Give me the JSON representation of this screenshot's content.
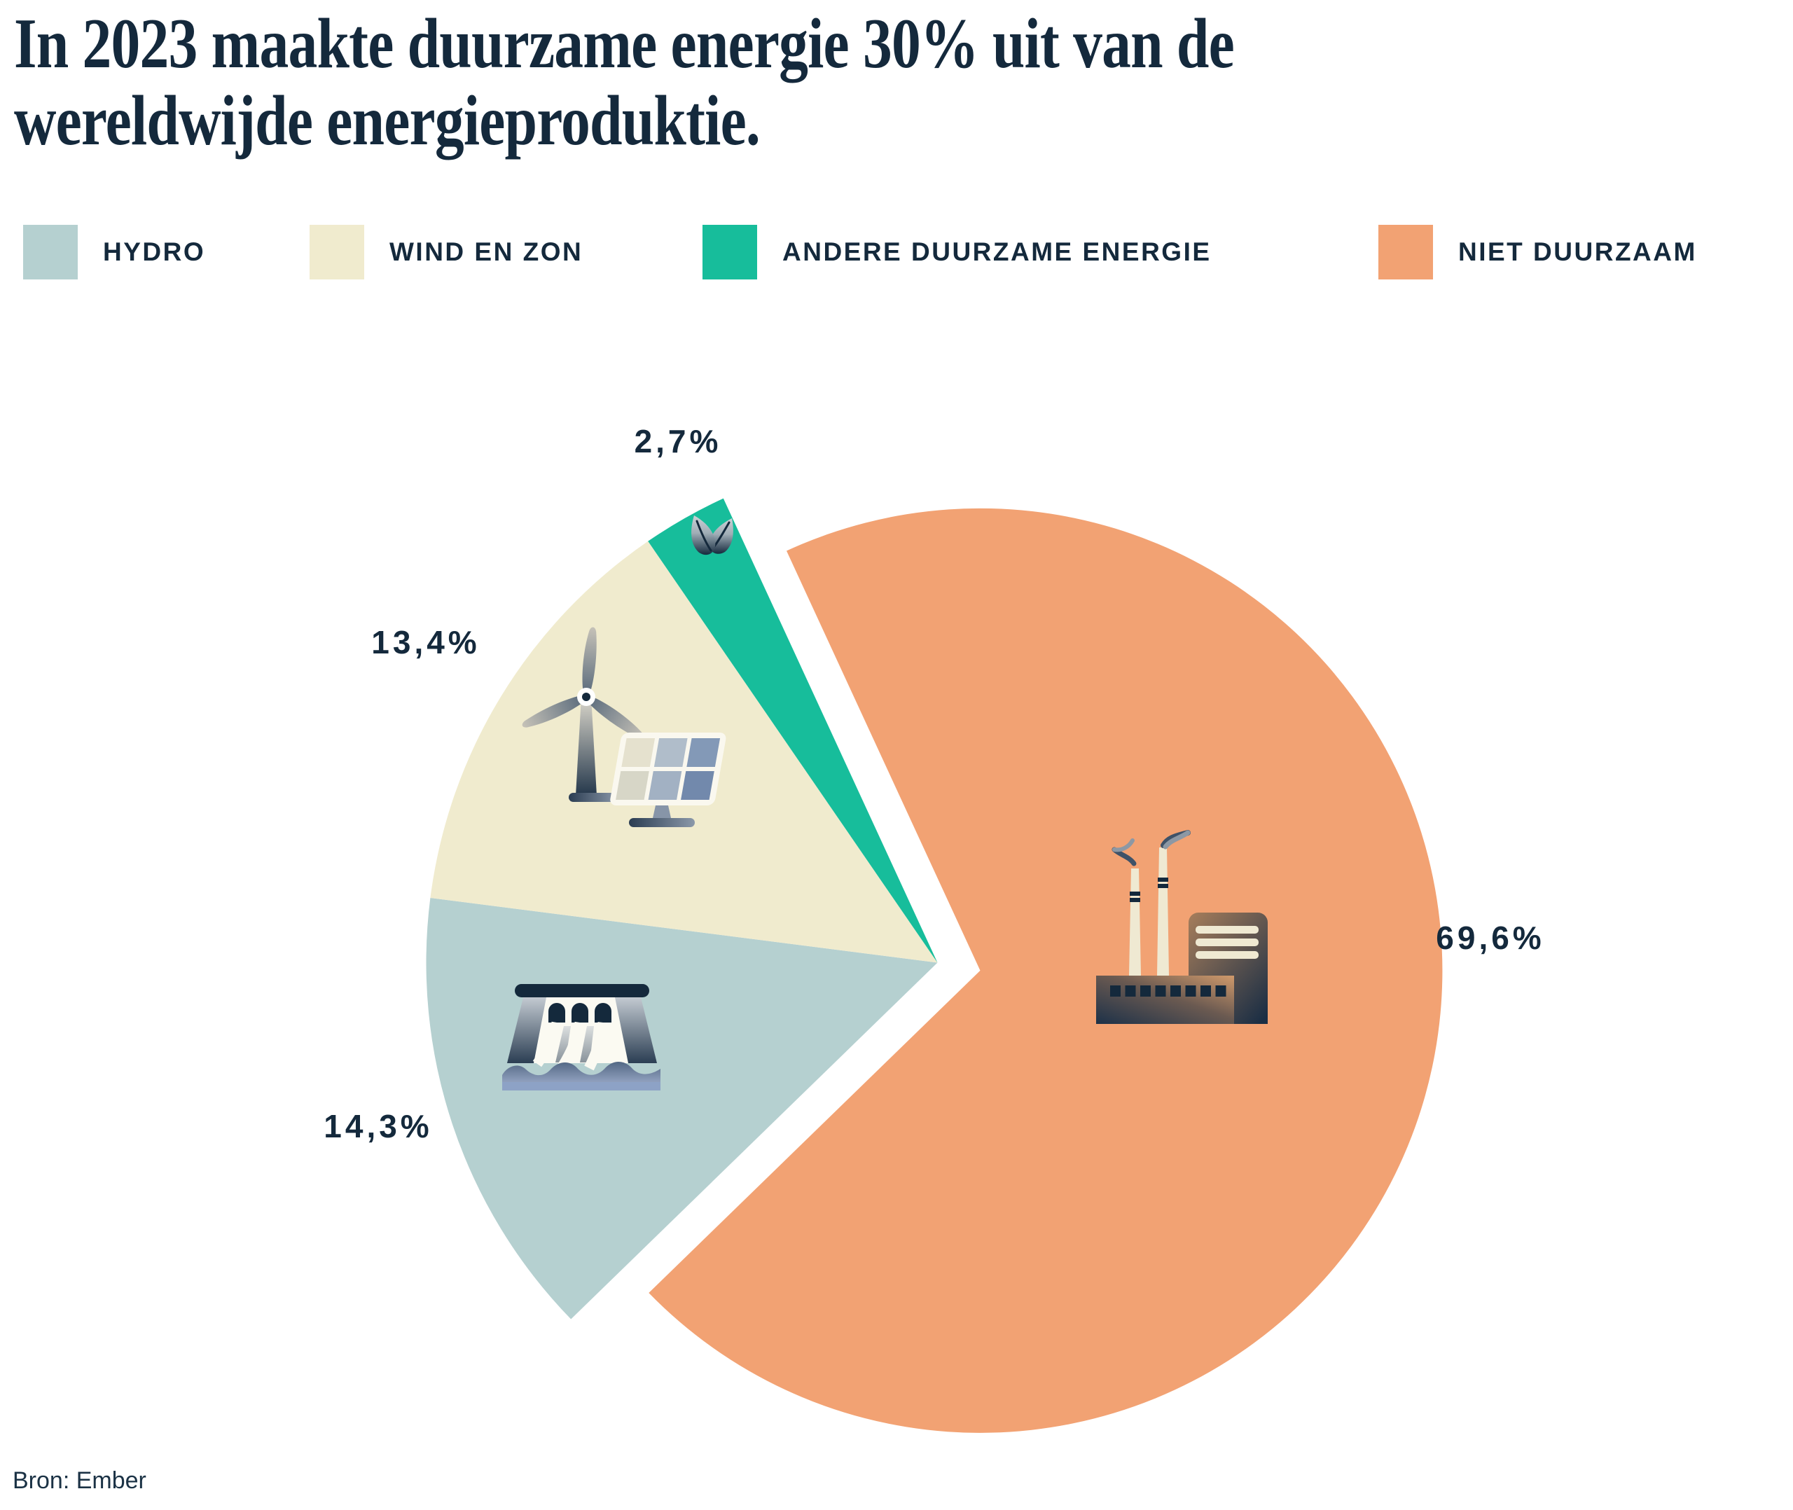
{
  "title": {
    "lines": [
      "In 2023 maakte duurzame energie 30% uit van de",
      "wereldwijde energieproduktie."
    ]
  },
  "legend": {
    "items": [
      {
        "key": "hydro",
        "label": "HYDRO",
        "color": "#b5d0d0"
      },
      {
        "key": "wind-en-zon",
        "label": "WIND EN ZON",
        "color": "#f0ebce"
      },
      {
        "key": "andere-duurzame-energie",
        "label": "ANDERE DUURZAME ENERGIE",
        "color": "#17bd9b"
      },
      {
        "key": "niet-duurzaam",
        "label": "NIET DUURZAAM",
        "color": "#f2a273"
      }
    ]
  },
  "chart_data": {
    "type": "pie",
    "title": "In 2023 maakte duurzame energie 30% uit van de wereldwijde energieproduktie.",
    "unit": "%",
    "start_angle_deg_from_north_clockwise": 225.8,
    "exploded": true,
    "legend_position": "top",
    "slices": [
      {
        "key": "hydro",
        "name": "Hydro",
        "value": 14.3,
        "label": "14,3%",
        "color": "#b5d0d0",
        "icon": "dam-icon"
      },
      {
        "key": "wind-en-zon",
        "name": "Wind en zon",
        "value": 13.4,
        "label": "13,4%",
        "color": "#f0ebce",
        "icon": "wind-turbine-solar-panel-icon"
      },
      {
        "key": "andere-duurzame-energie",
        "name": "Andere duurzame energie",
        "value": 2.7,
        "label": "2,7%",
        "color": "#17bd9b",
        "icon": "leaf-icon"
      },
      {
        "key": "niet-duurzaam",
        "name": "Niet duurzaam",
        "value": 69.6,
        "label": "69,6%",
        "color": "#f2a273",
        "icon": "factory-icon"
      }
    ]
  },
  "source": "Bron: Ember",
  "colors": {
    "ink": "#14293c",
    "background": "#ffffff"
  }
}
